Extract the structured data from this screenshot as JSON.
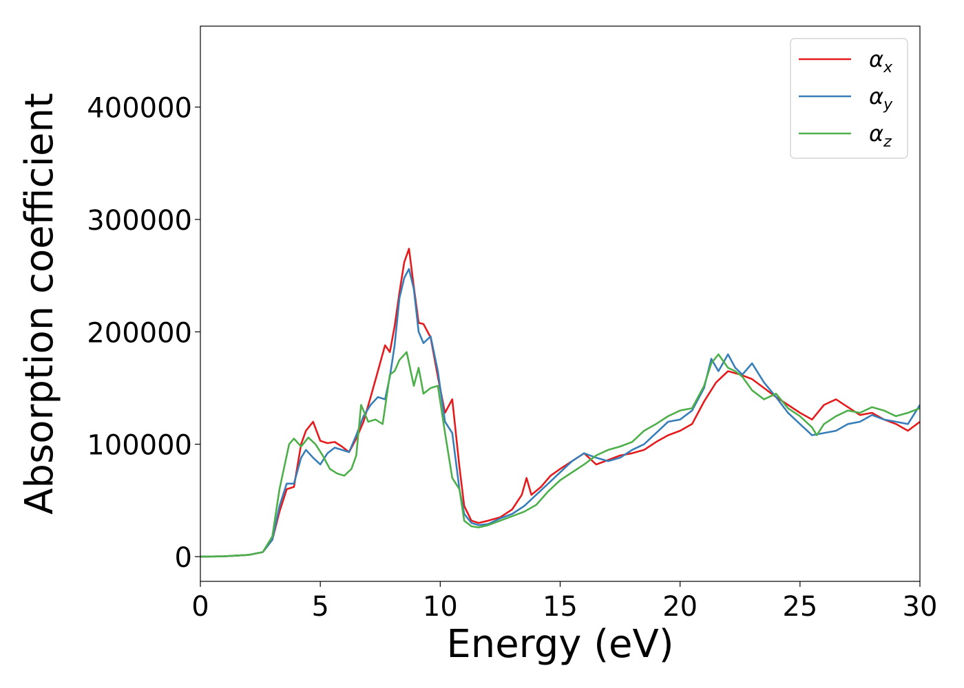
{
  "chart_data": {
    "type": "line",
    "xlabel": "Energy (eV)",
    "ylabel": "Absorption coefficient",
    "xlim": [
      0,
      30
    ],
    "ylim": [
      -22000,
      472000
    ],
    "xticks": [
      0,
      5,
      10,
      15,
      20,
      25,
      30
    ],
    "xtick_labels": [
      "0",
      "5",
      "10",
      "15",
      "20",
      "25",
      "30"
    ],
    "yticks": [
      0,
      100000,
      200000,
      300000,
      400000
    ],
    "ytick_labels": [
      "0",
      "100000",
      "200000",
      "300000",
      "400000"
    ],
    "grid": false,
    "legend_position": "top-right",
    "series": [
      {
        "name": "α",
        "subscript": "x",
        "color": "#e41a1c",
        "x": [
          0,
          1,
          2,
          2.6,
          3.0,
          3.3,
          3.6,
          3.9,
          4.2,
          4.4,
          4.7,
          5.0,
          5.3,
          5.6,
          5.9,
          6.2,
          6.5,
          6.8,
          7.1,
          7.4,
          7.7,
          7.9,
          8.1,
          8.3,
          8.5,
          8.7,
          8.9,
          9.1,
          9.3,
          9.6,
          9.9,
          10.2,
          10.5,
          10.8,
          11.0,
          11.3,
          11.6,
          12.0,
          12.5,
          13.0,
          13.4,
          13.6,
          13.8,
          14.2,
          14.6,
          15.0,
          15.5,
          16.0,
          16.5,
          17.0,
          17.5,
          18.0,
          18.5,
          19.0,
          19.5,
          20.0,
          20.5,
          21.0,
          21.5,
          22.0,
          22.5,
          23.0,
          23.5,
          24.0,
          24.5,
          25.0,
          25.5,
          26.0,
          26.5,
          27.0,
          27.5,
          28.0,
          28.5,
          29.0,
          29.5,
          30.0
        ],
        "y": [
          0,
          300,
          1500,
          4000,
          15000,
          40000,
          60000,
          62000,
          100000,
          112000,
          120000,
          103000,
          101000,
          102000,
          98000,
          93000,
          105000,
          120000,
          142000,
          165000,
          188000,
          182000,
          205000,
          235000,
          262000,
          274000,
          240000,
          208000,
          207000,
          195000,
          160000,
          128000,
          140000,
          80000,
          45000,
          32000,
          30000,
          32000,
          35000,
          42000,
          55000,
          70000,
          55000,
          62000,
          72000,
          78000,
          85000,
          92000,
          82000,
          86000,
          90000,
          92000,
          95000,
          102000,
          108000,
          112000,
          118000,
          138000,
          155000,
          165000,
          162000,
          158000,
          150000,
          142000,
          135000,
          128000,
          122000,
          135000,
          140000,
          133000,
          126000,
          128000,
          122000,
          118000,
          112000,
          120000
        ]
      },
      {
        "name": "α",
        "subscript": "y",
        "color": "#377eb8",
        "x": [
          0,
          1,
          2,
          2.6,
          3.0,
          3.3,
          3.6,
          3.9,
          4.2,
          4.4,
          4.7,
          5.0,
          5.3,
          5.6,
          5.9,
          6.2,
          6.5,
          6.8,
          7.1,
          7.4,
          7.7,
          7.9,
          8.1,
          8.3,
          8.5,
          8.7,
          8.9,
          9.1,
          9.3,
          9.6,
          9.9,
          10.2,
          10.5,
          10.8,
          11.0,
          11.3,
          11.6,
          12.0,
          12.5,
          13.0,
          13.5,
          14.0,
          14.5,
          15.0,
          15.5,
          16.0,
          16.5,
          17.0,
          17.5,
          18.0,
          18.5,
          19.0,
          19.5,
          20.0,
          20.5,
          21.0,
          21.3,
          21.6,
          22.0,
          22.3,
          22.6,
          23.0,
          23.5,
          24.0,
          24.5,
          25.0,
          25.5,
          26.0,
          26.5,
          27.0,
          27.5,
          28.0,
          28.5,
          29.0,
          29.5,
          30.0
        ],
        "y": [
          0,
          300,
          1500,
          4000,
          15000,
          45000,
          65000,
          65000,
          88000,
          95000,
          88000,
          82000,
          92000,
          97000,
          95000,
          93000,
          108000,
          125000,
          135000,
          142000,
          140000,
          160000,
          188000,
          230000,
          248000,
          256000,
          238000,
          200000,
          190000,
          196000,
          165000,
          120000,
          110000,
          60000,
          38000,
          30000,
          28000,
          29000,
          34000,
          38000,
          45000,
          55000,
          65000,
          75000,
          85000,
          92000,
          88000,
          85000,
          88000,
          95000,
          100000,
          110000,
          120000,
          122000,
          130000,
          150000,
          176000,
          165000,
          180000,
          168000,
          162000,
          172000,
          155000,
          142000,
          128000,
          118000,
          108000,
          110000,
          112000,
          118000,
          120000,
          126000,
          122000,
          120000,
          118000,
          135000
        ]
      },
      {
        "name": "α",
        "subscript": "z",
        "color": "#4daf4a",
        "x": [
          0,
          1,
          2,
          2.6,
          3.0,
          3.3,
          3.5,
          3.7,
          3.9,
          4.2,
          4.5,
          4.8,
          5.1,
          5.4,
          5.7,
          6.0,
          6.3,
          6.5,
          6.7,
          7.0,
          7.3,
          7.6,
          7.9,
          8.1,
          8.3,
          8.6,
          8.9,
          9.1,
          9.3,
          9.6,
          9.9,
          10.2,
          10.5,
          10.8,
          11.0,
          11.3,
          11.6,
          12.0,
          12.5,
          13.0,
          13.5,
          14.0,
          14.5,
          15.0,
          15.5,
          16.0,
          16.5,
          17.0,
          17.5,
          18.0,
          18.5,
          19.0,
          19.5,
          20.0,
          20.5,
          21.0,
          21.3,
          21.6,
          22.0,
          22.3,
          22.6,
          23.0,
          23.5,
          24.0,
          24.5,
          25.0,
          25.5,
          25.7,
          26.0,
          26.5,
          27.0,
          27.5,
          28.0,
          28.5,
          29.0,
          29.5,
          30.0
        ],
        "y": [
          0,
          300,
          1500,
          4000,
          18000,
          60000,
          80000,
          100000,
          105000,
          98000,
          106000,
          100000,
          90000,
          78000,
          74000,
          72000,
          78000,
          90000,
          135000,
          120000,
          122000,
          118000,
          162000,
          165000,
          175000,
          182000,
          152000,
          168000,
          145000,
          150000,
          152000,
          110000,
          70000,
          60000,
          32000,
          27000,
          26000,
          28000,
          32000,
          36000,
          40000,
          46000,
          58000,
          68000,
          75000,
          82000,
          90000,
          95000,
          98000,
          102000,
          112000,
          118000,
          125000,
          130000,
          132000,
          152000,
          172000,
          180000,
          168000,
          165000,
          160000,
          148000,
          140000,
          145000,
          132000,
          125000,
          115000,
          108000,
          118000,
          125000,
          130000,
          128000,
          133000,
          130000,
          125000,
          128000,
          132000
        ]
      }
    ]
  }
}
